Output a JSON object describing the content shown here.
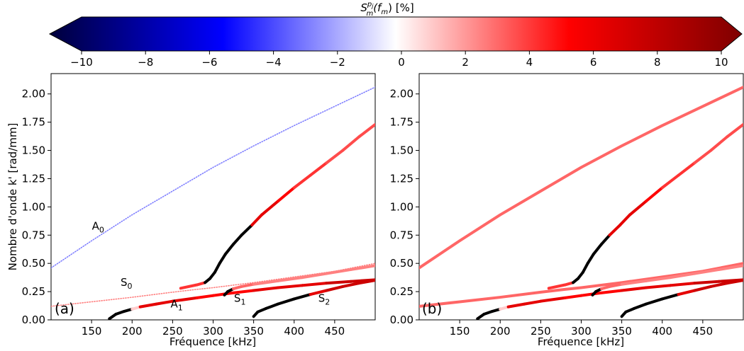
{
  "colorbar": {
    "title_main": "S",
    "title_sup": "p",
    "title_sup2": "j",
    "title_sub": "m",
    "title_rest": "(f",
    "title_rest_sub": "m",
    "title_tail": ") [%]",
    "min": -10,
    "max": 10,
    "colormap": [
      "#00003b",
      "#0000ff",
      "#ffffff",
      "#ff0000",
      "#7f0000"
    ],
    "ticks": [
      "−10",
      "−8",
      "−6",
      "−4",
      "−2",
      "0",
      "2",
      "4",
      "6",
      "8",
      "10"
    ]
  },
  "chart_data": [
    {
      "type": "scatter",
      "panel_label": "(a)",
      "xlabel": "Fréquence [kHz]",
      "ylabel": "Nombre d'onde k' [rad/mm]",
      "xlim": [
        100,
        500
      ],
      "ylim": [
        0,
        2.18
      ],
      "xticks": [
        "150",
        "200",
        "250",
        "300",
        "350",
        "400",
        "450"
      ],
      "yticks": [
        "0.00",
        "0.25",
        "0.50",
        "0.75",
        "1.00",
        "1.25",
        "1.50",
        "1.75",
        "2.00"
      ],
      "mode_labels": [
        {
          "main": "A",
          "sub": "0",
          "x": 158,
          "y": 0.8
        },
        {
          "main": "S",
          "sub": "0",
          "x": 193,
          "y": 0.3
        },
        {
          "main": "A",
          "sub": "1",
          "x": 255,
          "y": 0.11
        },
        {
          "main": "S",
          "sub": "1",
          "x": 333,
          "y": 0.16
        },
        {
          "main": "S",
          "sub": "2",
          "x": 437,
          "y": 0.16
        }
      ],
      "series": [
        {
          "name": "A0",
          "style": "dotted",
          "color_value": -2.5,
          "x": [
            100,
            150,
            200,
            250,
            300,
            350,
            400,
            450,
            500
          ],
          "y": [
            0.46,
            0.7,
            0.93,
            1.14,
            1.35,
            1.54,
            1.72,
            1.89,
            2.06
          ]
        },
        {
          "name": "S0",
          "style": "dotted",
          "color_value": 2.5,
          "x": [
            100,
            150,
            200,
            250,
            280,
            300,
            350,
            400,
            450,
            500
          ],
          "y": [
            0.12,
            0.16,
            0.2,
            0.245,
            0.27,
            0.285,
            0.33,
            0.38,
            0.43,
            0.5
          ]
        },
        {
          "name": "A1",
          "style": "solid",
          "x": [
            172,
            180,
            190,
            200,
            210,
            230,
            250,
            280,
            300,
            320,
            350,
            380,
            410,
            440,
            470,
            500
          ],
          "y": [
            0.01,
            0.05,
            0.075,
            0.095,
            0.115,
            0.14,
            0.165,
            0.195,
            0.215,
            0.235,
            0.26,
            0.285,
            0.305,
            0.325,
            0.34,
            0.355
          ],
          "color_values": [
            -0.1,
            -0.1,
            -0.1,
            1,
            6,
            6,
            6,
            5,
            5,
            5,
            6,
            6,
            6,
            7,
            7,
            7
          ]
        },
        {
          "name": "S1",
          "style": "solid",
          "x": [
            314,
            318,
            325,
            335,
            350,
            380,
            410,
            440,
            470,
            500
          ],
          "y": [
            0.22,
            0.25,
            0.275,
            0.295,
            0.315,
            0.345,
            0.375,
            0.41,
            0.445,
            0.48
          ],
          "color_values": [
            -0.1,
            -0.1,
            3,
            3,
            2.5,
            2.5,
            2.5,
            2.5,
            2.5,
            2.5
          ]
        },
        {
          "name": "S2",
          "style": "solid",
          "x": [
            350,
            355,
            365,
            380,
            400,
            420,
            440,
            460,
            480,
            500
          ],
          "y": [
            0.03,
            0.07,
            0.1,
            0.14,
            0.185,
            0.225,
            0.26,
            0.295,
            0.325,
            0.35
          ],
          "color_values": [
            -0.1,
            -0.1,
            -0.1,
            -0.1,
            -0.1,
            6,
            7,
            7,
            7,
            7
          ]
        },
        {
          "name": "S0-A0",
          "style": "solid",
          "x": [
            260,
            280,
            290,
            296,
            302,
            308,
            315,
            325,
            335,
            348,
            360,
            380,
            400,
            420,
            440,
            460,
            480,
            500
          ],
          "y": [
            0.28,
            0.31,
            0.33,
            0.365,
            0.42,
            0.5,
            0.58,
            0.67,
            0.75,
            0.84,
            0.93,
            1.05,
            1.17,
            1.28,
            1.39,
            1.5,
            1.62,
            1.73
          ],
          "color_values": [
            4,
            4,
            -0.1,
            -0.1,
            -0.1,
            -0.1,
            -0.1,
            -0.1,
            -0.1,
            6,
            6,
            5,
            4,
            4,
            3.5,
            3.5,
            3.5,
            3.5
          ]
        }
      ]
    },
    {
      "type": "scatter",
      "panel_label": "(b)",
      "xlabel": "Fréquence [kHz]",
      "ylabel": "",
      "xlim": [
        100,
        500
      ],
      "ylim": [
        0,
        2.18
      ],
      "xticks": [
        "150",
        "200",
        "250",
        "300",
        "350",
        "400",
        "450"
      ],
      "yticks": [
        "0.00",
        "0.25",
        "0.50",
        "0.75",
        "1.00",
        "1.25",
        "1.50",
        "1.75",
        "2.00"
      ],
      "mode_labels": [],
      "series": [
        {
          "name": "A0",
          "style": "solid",
          "width": 4,
          "color_value": 3,
          "x": [
            100,
            150,
            200,
            250,
            300,
            350,
            400,
            450,
            500
          ],
          "y": [
            0.46,
            0.7,
            0.93,
            1.14,
            1.35,
            1.54,
            1.72,
            1.89,
            2.06
          ]
        },
        {
          "name": "S0",
          "style": "solid",
          "width": 4,
          "color_value": 3,
          "x": [
            100,
            150,
            200,
            250,
            280,
            300,
            350,
            400,
            450,
            500
          ],
          "y": [
            0.12,
            0.16,
            0.2,
            0.245,
            0.27,
            0.285,
            0.33,
            0.38,
            0.43,
            0.5
          ]
        },
        {
          "name": "A1",
          "style": "solid",
          "x": [
            172,
            180,
            190,
            200,
            210,
            230,
            250,
            280,
            300,
            320,
            350,
            380,
            410,
            440,
            470,
            500
          ],
          "y": [
            0.01,
            0.05,
            0.075,
            0.095,
            0.115,
            0.14,
            0.165,
            0.195,
            0.215,
            0.235,
            0.26,
            0.285,
            0.305,
            0.325,
            0.34,
            0.355
          ],
          "color_values": [
            -0.1,
            -0.1,
            -0.1,
            1,
            6,
            6,
            6,
            5,
            5,
            5,
            6,
            6,
            6,
            7,
            7,
            7
          ]
        },
        {
          "name": "S1",
          "style": "solid",
          "x": [
            314,
            318,
            325,
            335,
            350,
            380,
            410,
            440,
            470,
            500
          ],
          "y": [
            0.22,
            0.25,
            0.275,
            0.295,
            0.315,
            0.345,
            0.375,
            0.41,
            0.445,
            0.48
          ],
          "color_values": [
            -0.1,
            -0.1,
            3,
            3,
            2.5,
            2.5,
            2.5,
            2.5,
            2.5,
            2.5
          ]
        },
        {
          "name": "S2",
          "style": "solid",
          "x": [
            350,
            355,
            365,
            380,
            400,
            420,
            440,
            460,
            480,
            500
          ],
          "y": [
            0.03,
            0.07,
            0.1,
            0.14,
            0.185,
            0.225,
            0.26,
            0.295,
            0.325,
            0.35
          ],
          "color_values": [
            -0.1,
            -0.1,
            -0.1,
            -0.1,
            -0.1,
            6,
            7,
            7,
            7,
            7
          ]
        },
        {
          "name": "S0-A0",
          "style": "solid",
          "x": [
            260,
            280,
            290,
            296,
            302,
            308,
            315,
            325,
            335,
            348,
            360,
            380,
            400,
            420,
            440,
            460,
            480,
            500
          ],
          "y": [
            0.28,
            0.31,
            0.33,
            0.365,
            0.42,
            0.5,
            0.58,
            0.67,
            0.75,
            0.84,
            0.93,
            1.05,
            1.17,
            1.28,
            1.39,
            1.5,
            1.62,
            1.73
          ],
          "color_values": [
            4,
            4,
            -0.1,
            -0.1,
            -0.1,
            -0.1,
            -0.1,
            -0.1,
            6,
            6,
            6,
            5,
            4,
            4,
            3.5,
            3.5,
            3.5,
            3.5
          ]
        }
      ]
    }
  ]
}
